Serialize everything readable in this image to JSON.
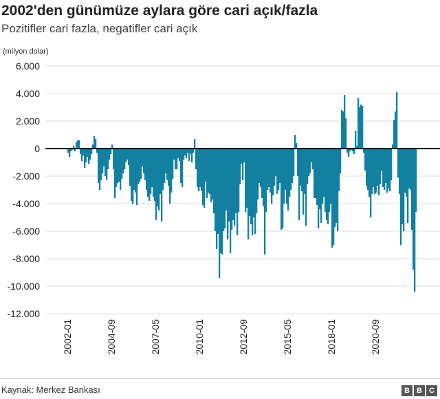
{
  "title": "2002'den günümüze aylara göre cari açık/fazla",
  "subtitle": "Pozitifler cari fazla, negatifler cari açık",
  "source": "Kaynak: Merkez Bankası",
  "logo": [
    "B",
    "B",
    "C"
  ],
  "chart_data": {
    "type": "bar",
    "title": "2002'den günümüze aylara göre cari açık/fazla",
    "subtitle": "Pozitifler cari fazla, negatifler cari açık",
    "ylabel": "(milyon dolar)",
    "xlabel": "",
    "ylim": [
      -12000,
      6000
    ],
    "yticks": [
      6000,
      4000,
      2000,
      0,
      -2000,
      -4000,
      -6000,
      -8000,
      -10000,
      -12000
    ],
    "ytick_labels": [
      "6.000",
      "4.000",
      "2.000",
      "0",
      "-2.000",
      "-4.000",
      "-6.000",
      "-8.000",
      "-10.000",
      "-12.000"
    ],
    "xtick_labels": [
      "2002-01",
      "2004-09",
      "2007-05",
      "2010-01",
      "2012-09",
      "2015-05",
      "2018-01",
      "2020-09"
    ],
    "grid": true,
    "bar_color": "#1380a1",
    "frequency": "monthly",
    "data_by_year": [
      {
        "year": 2002,
        "values": [
          -300,
          -600,
          -200,
          -100,
          200,
          -200,
          500,
          600,
          600,
          -400,
          -900,
          -500
        ]
      },
      {
        "year": 2003,
        "values": [
          -1400,
          -1000,
          -600,
          -1100,
          -800,
          -400,
          300,
          900,
          700,
          -300,
          -2500,
          -3000
        ]
      },
      {
        "year": 2004,
        "values": [
          -2300,
          -1800,
          -1300,
          -2000,
          -2300,
          -1500,
          -800,
          -400,
          300,
          -1500,
          -3600,
          -2800
        ]
      },
      {
        "year": 2005,
        "values": [
          -2500,
          -2400,
          -3000,
          -2200,
          -1800,
          -1500,
          -1000,
          -800,
          -1200,
          -2700,
          -3800,
          -4000
        ]
      },
      {
        "year": 2006,
        "values": [
          -3000,
          -3200,
          -4100,
          -2600,
          -2400,
          -2200,
          -1300,
          -1800,
          -2300,
          -3000,
          -3500,
          -3800
        ]
      },
      {
        "year": 2007,
        "values": [
          -3300,
          -2800,
          -3500,
          -3800,
          -5200,
          -4200,
          -4500,
          -3300,
          -5300,
          -3000,
          -2500,
          -1800
        ]
      },
      {
        "year": 2008,
        "values": [
          -2300,
          -2700,
          -4000,
          -3200,
          -2200,
          -800,
          -1500,
          -1500,
          -700,
          -900,
          -2500,
          -2800
        ]
      },
      {
        "year": 2009,
        "values": [
          -800,
          -500,
          -700,
          -300,
          -900,
          -400,
          -1000,
          -300,
          700,
          -1500,
          -2800,
          -3100
        ]
      },
      {
        "year": 2010,
        "values": [
          -2800,
          -3100,
          -4100,
          -4300,
          -2400,
          -3600,
          -3200,
          -3300,
          -3900,
          -3700,
          -4700,
          -6000
        ]
      },
      {
        "year": 2011,
        "values": [
          -7300,
          -6200,
          -9400,
          -7600,
          -7700,
          -6000,
          -5800,
          -4500,
          -6600,
          -5300,
          -7600,
          -5900
        ]
      },
      {
        "year": 2012,
        "values": [
          -5200,
          -5600,
          -4700,
          -6300,
          -4600,
          -2600,
          -1100,
          -2300,
          -1000,
          -4600,
          -4300,
          -6600
        ]
      },
      {
        "year": 2013,
        "values": [
          -4900,
          -5500,
          -6300,
          -5000,
          -6200,
          -4700,
          -3700,
          -2500,
          -2800,
          -3600,
          -4200,
          -7700
        ]
      },
      {
        "year": 2014,
        "values": [
          -4600,
          -3000,
          -2800,
          -3200,
          -4000,
          -3400,
          -2700,
          -2000,
          -3300,
          -3000,
          -2500,
          -5900
        ]
      },
      {
        "year": 2015,
        "values": [
          -5800,
          -4000,
          -3000,
          -4000,
          -4500,
          -3500,
          -3000,
          -2500,
          -2000,
          1000,
          400,
          -2000
        ]
      },
      {
        "year": 2016,
        "values": [
          -5200,
          -2700,
          -3100,
          -4800,
          -3300,
          -5600,
          -2600,
          -2000,
          -1800,
          -1000,
          -1500,
          -3600
        ]
      },
      {
        "year": 2017,
        "values": [
          -3600,
          -4100,
          -5800,
          -4400,
          -5400,
          -4000,
          -3500,
          -4600,
          -5200,
          -5500,
          -4600,
          -4000
        ]
      },
      {
        "year": 2018,
        "values": [
          -7200,
          -7000,
          -5700,
          -5400,
          -6000,
          -3100,
          -1800,
          2800,
          2700,
          3900,
          2200,
          -300
        ]
      },
      {
        "year": 2019,
        "values": [
          -600,
          -200,
          -100,
          -200,
          -400,
          1300,
          200,
          3700,
          3000,
          3200,
          3100,
          -300
        ]
      },
      {
        "year": 2020,
        "values": [
          -1600,
          -2700,
          -3000,
          -3500,
          -5000,
          -3300,
          -2800,
          -3300,
          -3200,
          -2700,
          -3400,
          -2600
        ]
      },
      {
        "year": 2021,
        "values": [
          -1600,
          -2800,
          -3000,
          -2500,
          -3200,
          -2900,
          -3100,
          -2300,
          300,
          2100,
          2700,
          4100
        ]
      },
      {
        "year": 2022,
        "values": [
          -2100,
          -3300,
          -7000,
          -5500,
          -6000,
          -3200,
          -3500,
          -5400,
          -2900,
          -3000,
          -5900,
          -8800
        ]
      },
      {
        "year": 2023,
        "values": [
          -10400,
          -4600
        ]
      }
    ]
  }
}
